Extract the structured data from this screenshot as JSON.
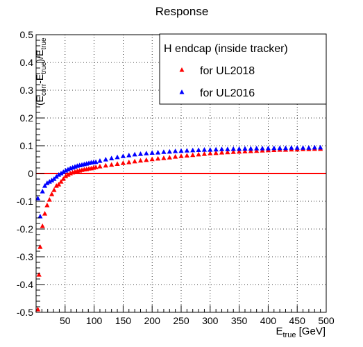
{
  "chart_data": {
    "type": "scatter",
    "title": "Response",
    "xlabel": {
      "main": "E",
      "sub": "true",
      "unit": " [GeV]"
    },
    "ylabel": {
      "open": "(E",
      "sub1": "corr",
      "mid": "-E",
      "sub2": "true",
      "close": ")/E",
      "sub3": "true"
    },
    "xlim": [
      0,
      500
    ],
    "ylim": [
      -0.5,
      0.5
    ],
    "xticks": [
      50,
      100,
      150,
      200,
      250,
      300,
      350,
      400,
      450,
      500
    ],
    "yticks": [
      -0.5,
      -0.4,
      -0.3,
      -0.2,
      -0.1,
      0,
      0.1,
      0.2,
      0.3,
      0.4,
      0.5
    ],
    "grid": true,
    "reference_line": {
      "y": 0,
      "color": "#ff0000"
    },
    "legend": {
      "title": "H endcap (inside tracker)",
      "placement": "top-right"
    },
    "series": [
      {
        "name": "for UL2018",
        "color": "#ff0000",
        "marker": "triangle-up",
        "points": [
          [
            3,
            -0.49
          ],
          [
            5,
            -0.365
          ],
          [
            7,
            -0.265
          ],
          [
            11,
            -0.19
          ],
          [
            15,
            -0.145
          ],
          [
            19,
            -0.115
          ],
          [
            23,
            -0.095
          ],
          [
            27,
            -0.075
          ],
          [
            31,
            -0.06
          ],
          [
            35,
            -0.045
          ],
          [
            39,
            -0.04
          ],
          [
            43,
            -0.03
          ],
          [
            47,
            -0.02
          ],
          [
            51,
            -0.01
          ],
          [
            55,
            -0.005
          ],
          [
            59,
            0.0
          ],
          [
            63,
            0.003
          ],
          [
            67,
            0.006
          ],
          [
            71,
            0.008
          ],
          [
            75,
            0.01
          ],
          [
            79,
            0.012
          ],
          [
            83,
            0.014
          ],
          [
            87,
            0.015
          ],
          [
            91,
            0.017
          ],
          [
            95,
            0.018
          ],
          [
            99,
            0.02
          ],
          [
            103,
            0.022
          ],
          [
            110,
            0.025
          ],
          [
            120,
            0.028
          ],
          [
            130,
            0.031
          ],
          [
            140,
            0.034
          ],
          [
            150,
            0.037
          ],
          [
            160,
            0.04
          ],
          [
            170,
            0.043
          ],
          [
            180,
            0.046
          ],
          [
            190,
            0.048
          ],
          [
            200,
            0.051
          ],
          [
            210,
            0.053
          ],
          [
            220,
            0.055
          ],
          [
            230,
            0.057
          ],
          [
            240,
            0.06
          ],
          [
            250,
            0.062
          ],
          [
            260,
            0.064
          ],
          [
            270,
            0.066
          ],
          [
            280,
            0.068
          ],
          [
            290,
            0.07
          ],
          [
            300,
            0.072
          ],
          [
            310,
            0.073
          ],
          [
            320,
            0.075
          ],
          [
            330,
            0.076
          ],
          [
            340,
            0.077
          ],
          [
            350,
            0.078
          ],
          [
            360,
            0.079
          ],
          [
            370,
            0.08
          ],
          [
            380,
            0.081
          ],
          [
            390,
            0.082
          ],
          [
            400,
            0.083
          ],
          [
            410,
            0.084
          ],
          [
            420,
            0.085
          ],
          [
            430,
            0.085
          ],
          [
            440,
            0.086
          ],
          [
            450,
            0.086
          ],
          [
            460,
            0.087
          ],
          [
            470,
            0.087
          ],
          [
            480,
            0.088
          ],
          [
            490,
            0.088
          ]
        ]
      },
      {
        "name": "for UL2016",
        "color": "#0000ff",
        "marker": "triangle-up",
        "points": [
          [
            3,
            -0.09
          ],
          [
            7,
            -0.155
          ],
          [
            11,
            -0.065
          ],
          [
            15,
            -0.045
          ],
          [
            19,
            -0.035
          ],
          [
            23,
            -0.03
          ],
          [
            27,
            -0.025
          ],
          [
            31,
            -0.02
          ],
          [
            35,
            -0.012
          ],
          [
            39,
            -0.005
          ],
          [
            43,
            0.0
          ],
          [
            47,
            0.005
          ],
          [
            51,
            0.01
          ],
          [
            55,
            0.014
          ],
          [
            59,
            0.018
          ],
          [
            63,
            0.021
          ],
          [
            67,
            0.024
          ],
          [
            71,
            0.027
          ],
          [
            75,
            0.029
          ],
          [
            79,
            0.031
          ],
          [
            83,
            0.033
          ],
          [
            87,
            0.035
          ],
          [
            91,
            0.037
          ],
          [
            95,
            0.039
          ],
          [
            99,
            0.04
          ],
          [
            103,
            0.041
          ],
          [
            110,
            0.045
          ],
          [
            120,
            0.05
          ],
          [
            130,
            0.054
          ],
          [
            140,
            0.058
          ],
          [
            150,
            0.062
          ],
          [
            160,
            0.065
          ],
          [
            170,
            0.068
          ],
          [
            180,
            0.07
          ],
          [
            190,
            0.072
          ],
          [
            200,
            0.074
          ],
          [
            210,
            0.075
          ],
          [
            220,
            0.077
          ],
          [
            230,
            0.078
          ],
          [
            240,
            0.08
          ],
          [
            250,
            0.081
          ],
          [
            260,
            0.082
          ],
          [
            270,
            0.083
          ],
          [
            280,
            0.084
          ],
          [
            290,
            0.085
          ],
          [
            300,
            0.085
          ],
          [
            310,
            0.086
          ],
          [
            320,
            0.087
          ],
          [
            330,
            0.087
          ],
          [
            340,
            0.088
          ],
          [
            350,
            0.088
          ],
          [
            360,
            0.089
          ],
          [
            370,
            0.089
          ],
          [
            380,
            0.09
          ],
          [
            390,
            0.09
          ],
          [
            400,
            0.09
          ],
          [
            410,
            0.091
          ],
          [
            420,
            0.091
          ],
          [
            430,
            0.091
          ],
          [
            440,
            0.092
          ],
          [
            450,
            0.092
          ],
          [
            460,
            0.092
          ],
          [
            470,
            0.092
          ],
          [
            480,
            0.093
          ],
          [
            490,
            0.093
          ]
        ]
      }
    ]
  }
}
